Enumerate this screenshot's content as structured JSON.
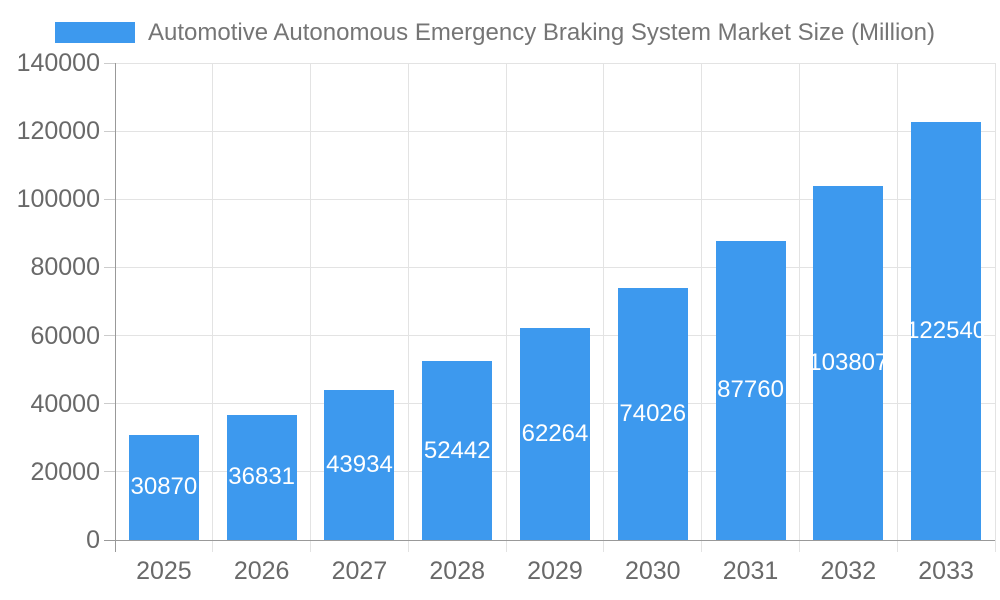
{
  "chart_data": {
    "type": "bar",
    "title": "Automotive Autonomous Emergency Braking System Market Size (Million)",
    "legend": {
      "label": "Automotive Autonomous Emergency Braking System Market Size (Million)",
      "position": "top-left"
    },
    "categories": [
      "2025",
      "2026",
      "2027",
      "2028",
      "2029",
      "2030",
      "2031",
      "2032",
      "2033"
    ],
    "values": [
      30870,
      36831,
      43934,
      52442,
      62264,
      74026,
      87760,
      103807,
      122540
    ],
    "xlabel": "",
    "ylabel": "",
    "ylim": [
      0,
      140000
    ],
    "y_ticks": [
      0,
      20000,
      40000,
      60000,
      80000,
      100000,
      120000,
      140000
    ],
    "grid": true,
    "bar_color": "#3d99ee",
    "bar_label_color": "#ffffff",
    "axis_text_color": "#696969",
    "title_color": "#757575",
    "gridline_color": "#e3e3e3",
    "axis_line_color": "#999999"
  }
}
